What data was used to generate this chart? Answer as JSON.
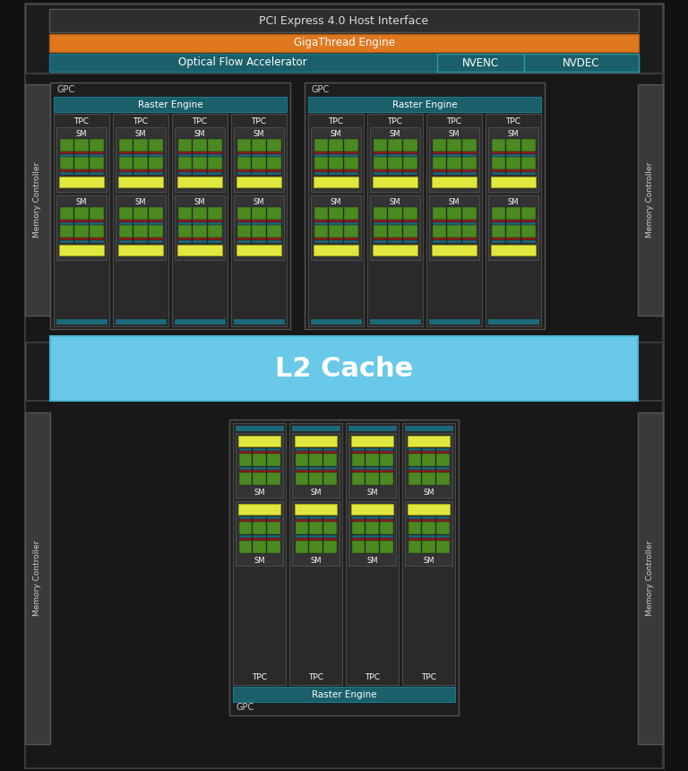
{
  "bg_color": "#111111",
  "outer_bg": "#1c1c1c",
  "pci_color": "#2e2e2e",
  "gigathread_color": "#e07820",
  "optical_color": "#1a5f6a",
  "l2_color": "#6ac8e8",
  "mem_ctrl_color": "#3a3a3a",
  "gpc_bg": "#1e1e1e",
  "raster_color": "#1a5f6a",
  "tpc_bg": "#2a2a2a",
  "sm_bg": "#333333",
  "sm_green": "#4a8a20",
  "sm_red": "#8a2020",
  "sm_teal": "#1a6a7a",
  "sm_yellow": "#e0e840",
  "text_white": "#ffffff",
  "title_pci": "PCI Express 4.0 Host Interface",
  "title_giga": "GigaThread Engine",
  "title_optical": "Optical Flow Accelerator",
  "title_nvenc": "NVENC",
  "title_nvdec": "NVDEC",
  "title_l2": "L2 Cache",
  "title_raster": "Raster Engine",
  "title_gpc": "GPC",
  "title_tpc": "TPC",
  "title_sm": "SM",
  "title_mem": "Memory Controller"
}
